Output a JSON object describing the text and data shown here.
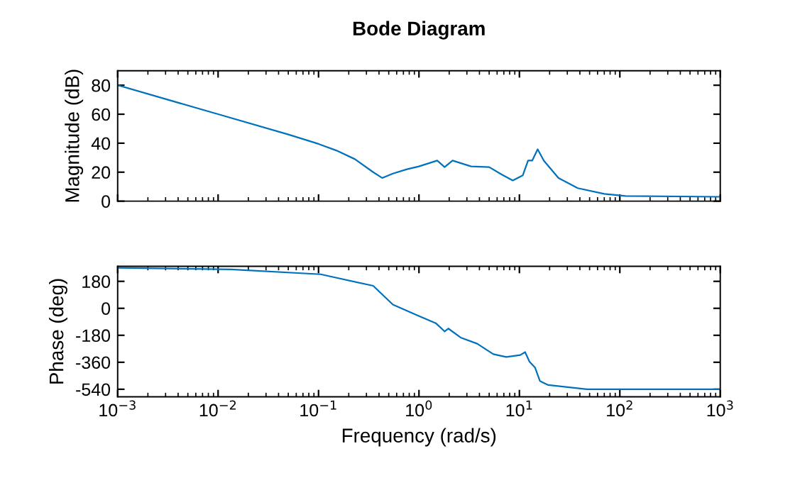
{
  "chart_data": [
    {
      "type": "line",
      "title": "Bode Diagram",
      "ylabel": "Magnitude (dB)",
      "log": "x",
      "grid": false,
      "tick_labels": "y",
      "xlim": [
        0.001,
        1000
      ],
      "xticks": [
        0.001,
        0.01,
        0.1,
        1,
        10,
        100,
        1000
      ],
      "ylim": [
        0,
        90
      ],
      "yticks": [
        0,
        20,
        40,
        60,
        80
      ],
      "series": [
        {
          "color": "#0072bd",
          "x": [
            0.001,
            0.01,
            0.05,
            0.1,
            0.15,
            0.23,
            0.35,
            0.43,
            0.55,
            0.76,
            1.0,
            1.52,
            1.8,
            2.16,
            3.3,
            5.0,
            6.7,
            8.6,
            10.8,
            12.2,
            13.4,
            15.2,
            17.5,
            24.5,
            38,
            70,
            114,
            1000
          ],
          "values": [
            80,
            60,
            46,
            39.5,
            35,
            29,
            20,
            16,
            19,
            22,
            24,
            28,
            23.5,
            28,
            24,
            23.5,
            18.3,
            14.3,
            17.8,
            28,
            28,
            35.8,
            28,
            16,
            9,
            5,
            3.5,
            3
          ]
        }
      ]
    },
    {
      "type": "line",
      "xlabel": "Frequency (rad/s)",
      "ylabel": "Phase (deg)",
      "log": "x",
      "grid": false,
      "xlim": [
        0.001,
        1000
      ],
      "xticks": [
        {
          "value": 0.001,
          "label": "10$^{−3}$"
        },
        {
          "value": 0.01,
          "label": "10$^{−2}$"
        },
        {
          "value": 0.1,
          "label": "10$^{−1}$"
        },
        {
          "value": 1,
          "label": "10$^{0}$"
        },
        {
          "value": 10,
          "label": "10$^{1}$"
        },
        {
          "value": 100,
          "label": "10$^{2}$"
        },
        {
          "value": 1000,
          "label": "10$^{3}$"
        }
      ],
      "ylim": [
        -590,
        280
      ],
      "yticks": [
        -540,
        -360,
        -180,
        0,
        180
      ],
      "series": [
        {
          "color": "#0072bd",
          "x": [
            0.001,
            0.0135,
            0.105,
            0.35,
            0.55,
            0.94,
            1.47,
            1.8,
            1.96,
            2.6,
            3.8,
            5.5,
            7.4,
            10.2,
            11.4,
            12.6,
            14.3,
            16,
            19.4,
            47,
            1000
          ],
          "values": [
            270,
            260,
            227,
            150,
            25,
            -44,
            -99,
            -154,
            -135,
            -195,
            -236,
            -306,
            -325,
            -312,
            -292,
            -356,
            -395,
            -485,
            -512,
            -540,
            -540
          ]
        }
      ]
    }
  ]
}
